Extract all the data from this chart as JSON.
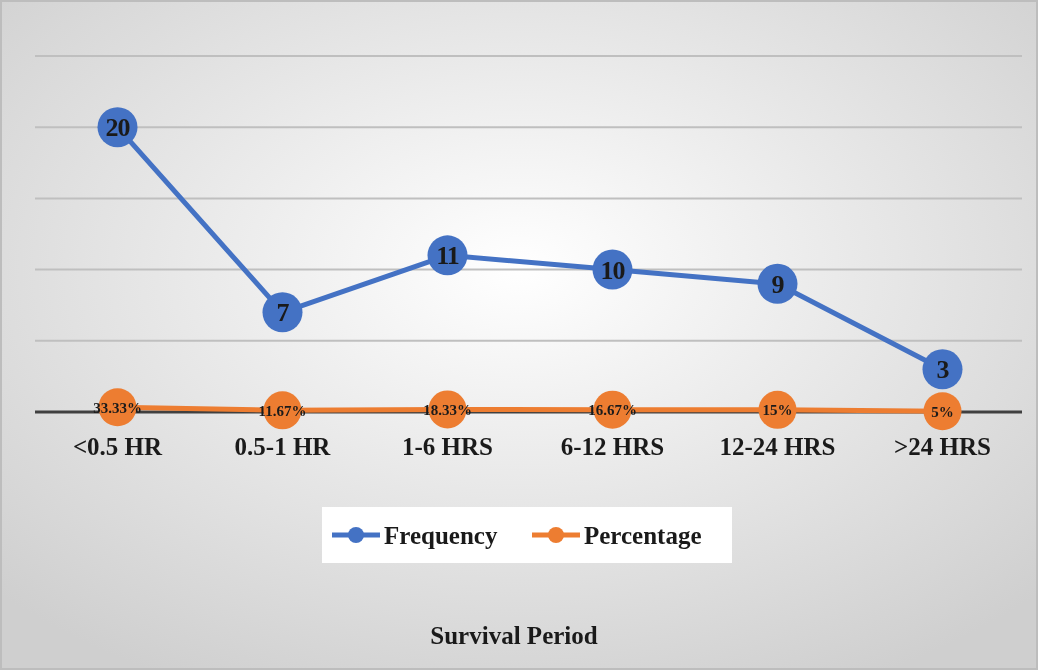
{
  "chart_data": {
    "type": "line",
    "annotations": [
      "Survival Period"
    ],
    "categories": [
      "<0.5 HR",
      "0.5-1 HR",
      "1-6 HRS",
      "6-12 HRS",
      "12-24 HRS",
      ">24 HRS"
    ],
    "series": [
      {
        "name": "Frequency",
        "color": "#4472c4",
        "values": [
          20,
          7,
          11,
          10,
          9,
          3
        ],
        "value_labels": [
          "20",
          "7",
          "11",
          "10",
          "9",
          "3"
        ]
      },
      {
        "name": "Percentage",
        "color": "#ed7d31",
        "values": [
          0.3333,
          0.1167,
          0.1833,
          0.1667,
          0.15,
          0.05
        ],
        "value_labels": [
          "33.33%",
          "11.67%",
          "18.33%",
          "16.67%",
          "15%",
          "5%"
        ]
      }
    ],
    "ylim": [
      0,
      25
    ],
    "yticks": [
      {
        "value": 0,
        "label": null
      },
      {
        "value": 5,
        "label": null
      },
      {
        "value": 10,
        "label": null
      },
      {
        "value": 15,
        "label": null
      },
      {
        "value": 20,
        "label": null
      },
      {
        "value": 25,
        "label": null
      }
    ],
    "tick_labels": "x",
    "grid": "y",
    "legend": "bottom",
    "marker": "circle",
    "line_style": "solid"
  }
}
